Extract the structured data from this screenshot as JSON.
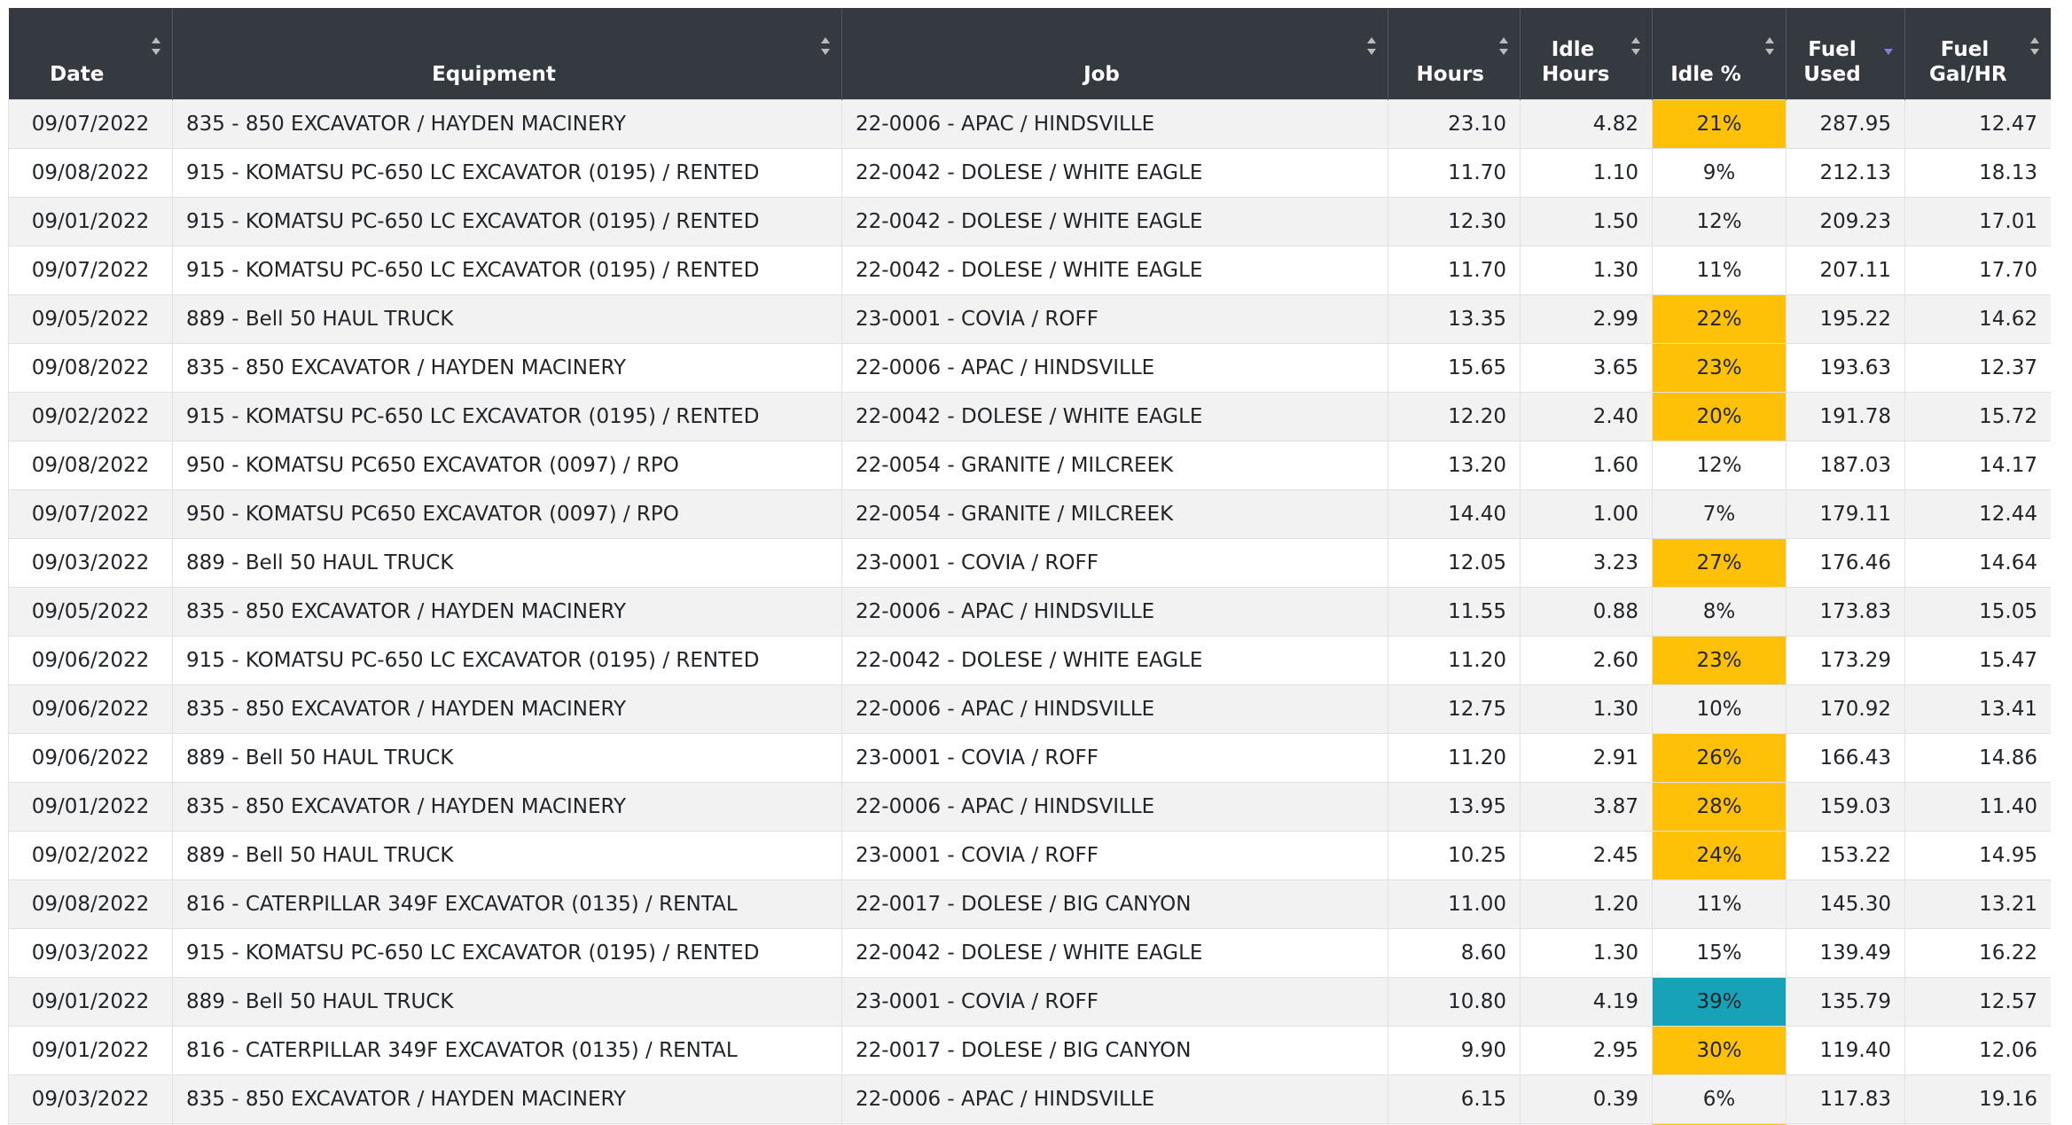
{
  "table": {
    "columns": [
      "Date",
      "Equipment",
      "Job",
      "Hours",
      "Idle Hours",
      "Idle %",
      "Fuel Used",
      "Fuel Gal/HR"
    ],
    "sorted_column": 6,
    "rows": [
      [
        "09/07/2022",
        "835 - 850 EXCAVATOR / HAYDEN MACINERY",
        "22-0006 - APAC / HINDSVILLE",
        "23.10",
        "4.82",
        "21%",
        "287.95",
        "12.47"
      ],
      [
        "09/08/2022",
        "915 - KOMATSU PC-650 LC EXCAVATOR (0195) / RENTED",
        "22-0042 - DOLESE / WHITE EAGLE",
        "11.70",
        "1.10",
        "9%",
        "212.13",
        "18.13"
      ],
      [
        "09/01/2022",
        "915 - KOMATSU PC-650 LC EXCAVATOR (0195) / RENTED",
        "22-0042 - DOLESE / WHITE EAGLE",
        "12.30",
        "1.50",
        "12%",
        "209.23",
        "17.01"
      ],
      [
        "09/07/2022",
        "915 - KOMATSU PC-650 LC EXCAVATOR (0195) / RENTED",
        "22-0042 - DOLESE / WHITE EAGLE",
        "11.70",
        "1.30",
        "11%",
        "207.11",
        "17.70"
      ],
      [
        "09/05/2022",
        "889 - Bell 50 HAUL TRUCK",
        "23-0001 - COVIA / ROFF",
        "13.35",
        "2.99",
        "22%",
        "195.22",
        "14.62"
      ],
      [
        "09/08/2022",
        "835 - 850 EXCAVATOR / HAYDEN MACINERY",
        "22-0006 - APAC / HINDSVILLE",
        "15.65",
        "3.65",
        "23%",
        "193.63",
        "12.37"
      ],
      [
        "09/02/2022",
        "915 - KOMATSU PC-650 LC EXCAVATOR (0195) / RENTED",
        "22-0042 - DOLESE / WHITE EAGLE",
        "12.20",
        "2.40",
        "20%",
        "191.78",
        "15.72"
      ],
      [
        "09/08/2022",
        "950 - KOMATSU PC650 EXCAVATOR (0097) / RPO",
        "22-0054 - GRANITE / MILCREEK",
        "13.20",
        "1.60",
        "12%",
        "187.03",
        "14.17"
      ],
      [
        "09/07/2022",
        "950 - KOMATSU PC650 EXCAVATOR (0097) / RPO",
        "22-0054 - GRANITE / MILCREEK",
        "14.40",
        "1.00",
        "7%",
        "179.11",
        "12.44"
      ],
      [
        "09/03/2022",
        "889 - Bell 50 HAUL TRUCK",
        "23-0001 - COVIA / ROFF",
        "12.05",
        "3.23",
        "27%",
        "176.46",
        "14.64"
      ],
      [
        "09/05/2022",
        "835 - 850 EXCAVATOR / HAYDEN MACINERY",
        "22-0006 - APAC / HINDSVILLE",
        "11.55",
        "0.88",
        "8%",
        "173.83",
        "15.05"
      ],
      [
        "09/06/2022",
        "915 - KOMATSU PC-650 LC EXCAVATOR (0195) / RENTED",
        "22-0042 - DOLESE / WHITE EAGLE",
        "11.20",
        "2.60",
        "23%",
        "173.29",
        "15.47"
      ],
      [
        "09/06/2022",
        "835 - 850 EXCAVATOR / HAYDEN MACINERY",
        "22-0006 - APAC / HINDSVILLE",
        "12.75",
        "1.30",
        "10%",
        "170.92",
        "13.41"
      ],
      [
        "09/06/2022",
        "889 - Bell 50 HAUL TRUCK",
        "23-0001 - COVIA / ROFF",
        "11.20",
        "2.91",
        "26%",
        "166.43",
        "14.86"
      ],
      [
        "09/01/2022",
        "835 - 850 EXCAVATOR / HAYDEN MACINERY",
        "22-0006 - APAC / HINDSVILLE",
        "13.95",
        "3.87",
        "28%",
        "159.03",
        "11.40"
      ],
      [
        "09/02/2022",
        "889 - Bell 50 HAUL TRUCK",
        "23-0001 - COVIA / ROFF",
        "10.25",
        "2.45",
        "24%",
        "153.22",
        "14.95"
      ],
      [
        "09/08/2022",
        "816 - CATERPILLAR 349F EXCAVATOR (0135) / RENTAL",
        "22-0017 - DOLESE / BIG CANYON",
        "11.00",
        "1.20",
        "11%",
        "145.30",
        "13.21"
      ],
      [
        "09/03/2022",
        "915 - KOMATSU PC-650 LC EXCAVATOR (0195) / RENTED",
        "22-0042 - DOLESE / WHITE EAGLE",
        "8.60",
        "1.30",
        "15%",
        "139.49",
        "16.22"
      ],
      [
        "09/01/2022",
        "889 - Bell 50 HAUL TRUCK",
        "23-0001 - COVIA / ROFF",
        "10.80",
        "4.19",
        "39%",
        "135.79",
        "12.57"
      ],
      [
        "09/01/2022",
        "816 - CATERPILLAR 349F EXCAVATOR (0135) / RENTAL",
        "22-0017 - DOLESE / BIG CANYON",
        "9.90",
        "2.95",
        "30%",
        "119.40",
        "12.06"
      ],
      [
        "09/03/2022",
        "835 - 850 EXCAVATOR / HAYDEN MACINERY",
        "22-0006 - APAC / HINDSVILLE",
        "6.15",
        "0.39",
        "6%",
        "117.83",
        "19.16"
      ]
    ],
    "idle_highlight": [
      "#ffc107",
      null,
      null,
      null,
      "#ffc107",
      "#ffc107",
      "#ffc107",
      null,
      null,
      "#ffc107",
      null,
      "#ffc107",
      null,
      "#ffc107",
      "#ffc107",
      "#ffc107",
      null,
      null,
      "#17a2b8",
      "#ffc107",
      null
    ]
  }
}
